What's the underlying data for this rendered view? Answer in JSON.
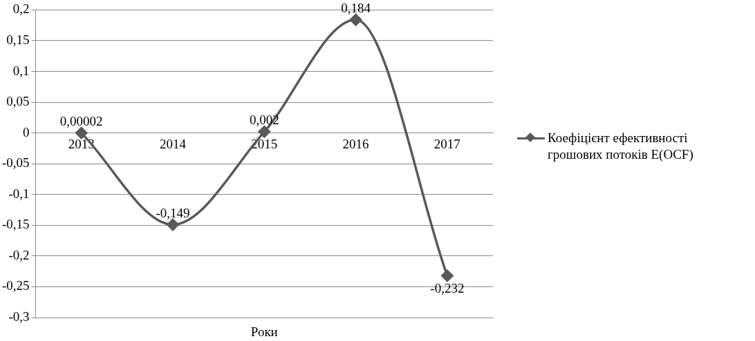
{
  "chart_data": {
    "type": "line",
    "xlabel": "Роки",
    "categories": [
      "2013",
      "2014",
      "2015",
      "2016",
      "2017"
    ],
    "series": [
      {
        "name": "Коефіцієнт ефективності грошових потоків E(OCF)",
        "color": "#595959",
        "values": [
          2e-05,
          -0.149,
          0.002,
          0.184,
          -0.232
        ]
      }
    ],
    "value_labels": [
      "0,00002",
      "-0,149",
      "0,002",
      "0,184",
      "-0,232"
    ],
    "ylim": [
      -0.3,
      0.2
    ],
    "yticks": [
      {
        "value": -0.3,
        "label": "-0,3"
      },
      {
        "value": -0.25,
        "label": "-0,25"
      },
      {
        "value": -0.2,
        "label": "-0,2"
      },
      {
        "value": -0.15,
        "label": "-0,15"
      },
      {
        "value": -0.1,
        "label": "-0,1"
      },
      {
        "value": -0.05,
        "label": "-0,05"
      },
      {
        "value": 0,
        "label": "0"
      },
      {
        "value": 0.05,
        "label": "0,05"
      },
      {
        "value": 0.1,
        "label": "0,1"
      },
      {
        "value": 0.15,
        "label": "0,15"
      },
      {
        "value": 0.2,
        "label": "0,2"
      }
    ],
    "grid": "y",
    "legend": "right",
    "marker": "diamond",
    "line_style": "solid"
  }
}
